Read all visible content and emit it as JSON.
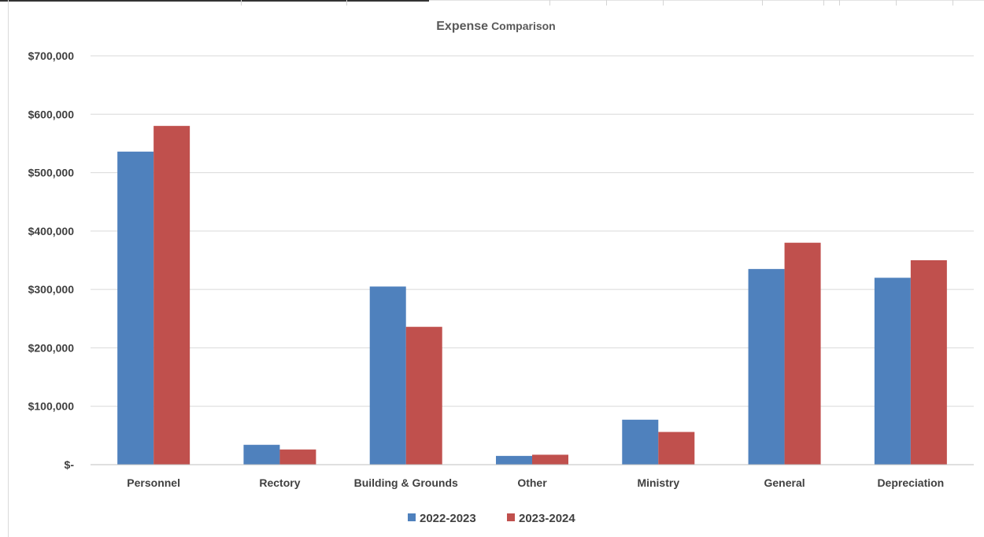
{
  "chart_data": {
    "type": "bar",
    "title": "Expense",
    "title_suffix": "Comparison",
    "categories": [
      "Personnel",
      "Rectory",
      "Building & Grounds",
      "Other",
      "Ministry",
      "General",
      "Depreciation"
    ],
    "series": [
      {
        "name": "2022-2023",
        "color": "#4F81BD",
        "values": [
          536000,
          34000,
          305000,
          15000,
          77000,
          335000,
          320000
        ]
      },
      {
        "name": "2023-2024",
        "color": "#C0504D",
        "values": [
          580000,
          26000,
          236000,
          17000,
          56000,
          380000,
          350000
        ]
      }
    ],
    "ylim": [
      0,
      700000
    ],
    "yticks": [
      0,
      100000,
      200000,
      300000,
      400000,
      500000,
      600000,
      700000
    ],
    "ytick_labels": [
      "$-",
      "$100,000",
      "$200,000",
      "$300,000",
      "$400,000",
      "$500,000",
      "$600,000",
      "$700,000"
    ],
    "grid": true,
    "legend_position": "bottom"
  }
}
